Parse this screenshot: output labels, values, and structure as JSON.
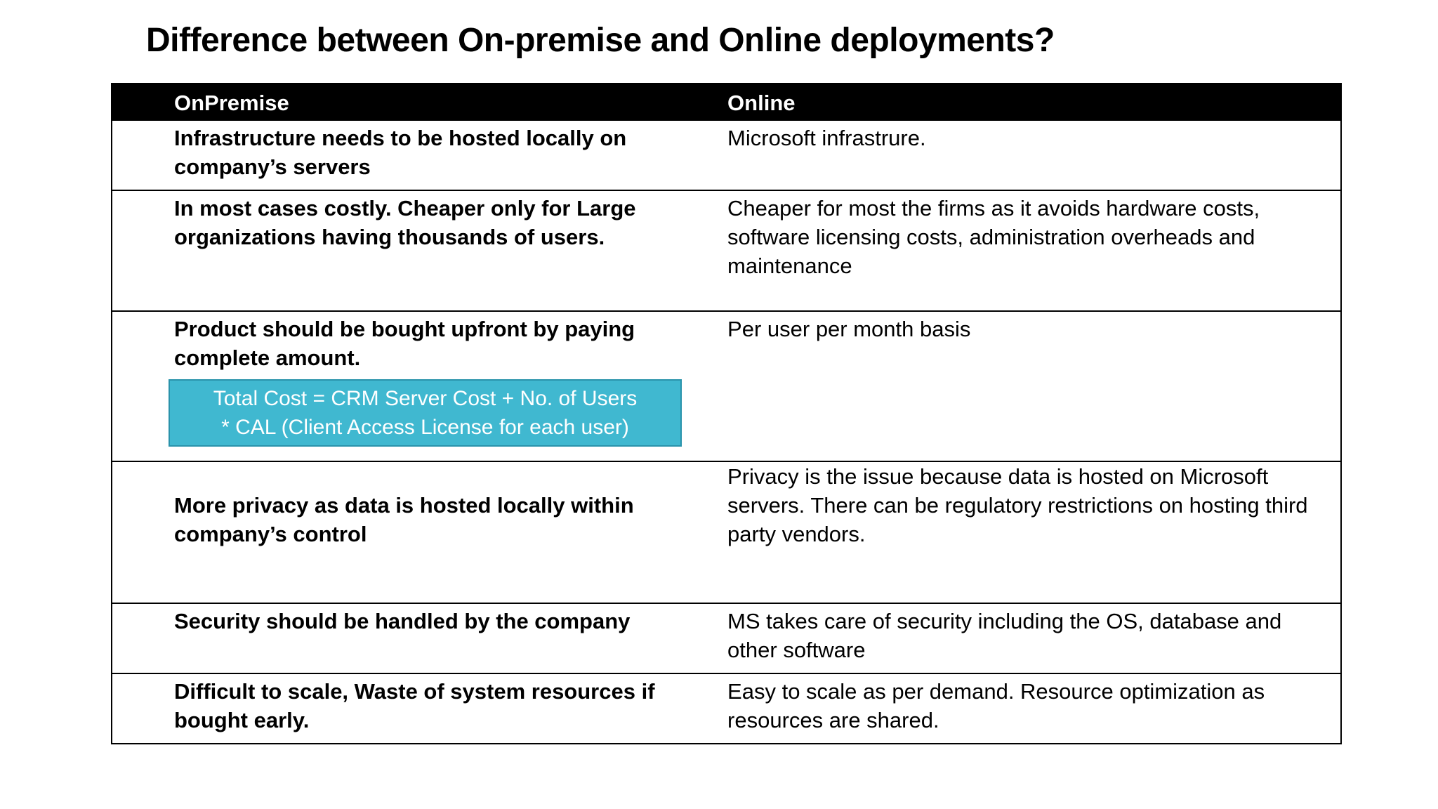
{
  "title": "Difference between On-premise and Online deployments?",
  "table": {
    "headers": [
      "OnPremise",
      "Online"
    ],
    "rows": [
      {
        "onpremise": "Infrastructure needs to be hosted locally on company’s servers",
        "online": "Microsoft infrastrure."
      },
      {
        "onpremise": "In most cases costly. Cheaper only for Large organizations having thousands of users.",
        "online": "Cheaper for most the firms as it avoids hardware costs, software licensing costs, administration overheads and maintenance"
      },
      {
        "onpremise": "Product should be bought upfront by paying complete amount.",
        "online": "Per user per month basis"
      },
      {
        "onpremise": "More privacy as data is hosted locally within company’s control",
        "online": "Privacy is the issue because data is hosted on Microsoft servers. There can be regulatory restrictions on hosting third party vendors."
      },
      {
        "onpremise": "Security should be handled by the company",
        "online": "MS takes care of security including the OS, database and other software"
      },
      {
        "onpremise": "Difficult to scale, Waste of system resources if bought early.",
        "online": "Easy to scale as per demand. Resource optimization as resources are shared."
      }
    ]
  },
  "cost_formula": {
    "line1": "Total Cost = CRM Server Cost + No. of Users",
    "line2": "* CAL (Client Access License for each user)"
  },
  "colors": {
    "header_bg": "#000000",
    "formula_box_bg": "#40b8d0"
  }
}
